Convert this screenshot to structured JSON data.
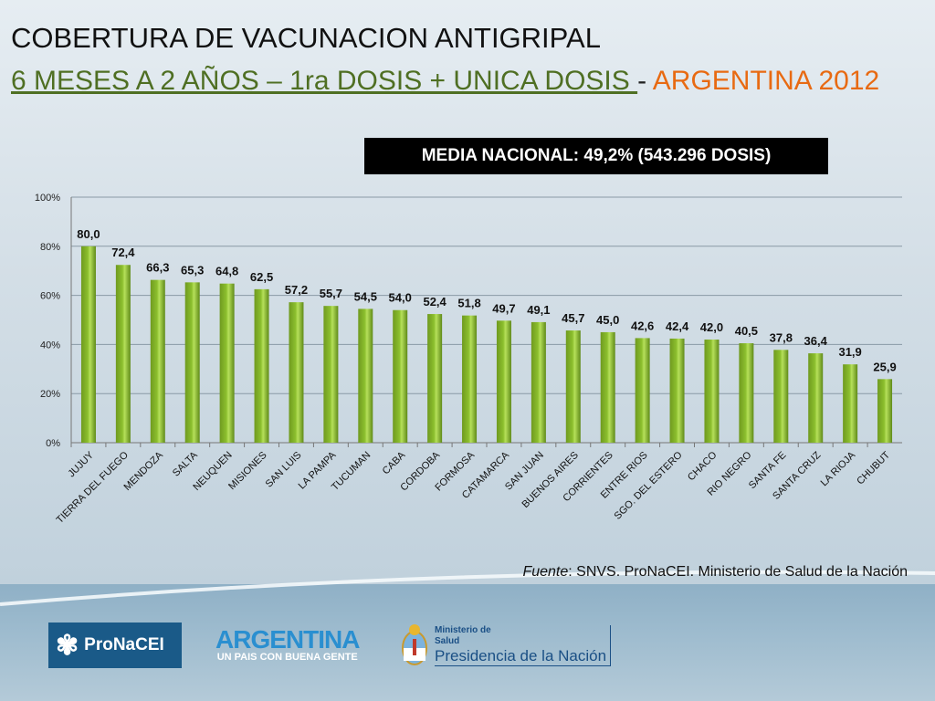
{
  "title": {
    "line1": "COBERTURA DE VACUNACION ANTIGRIPAL",
    "line2_underlined": "6 MESES A 2 AÑOS – 1ra DOSIS + UNICA DOSIS ",
    "line2_dash": "- ",
    "line2_orange": "ARGENTINA 2012"
  },
  "media_box": "MEDIA NACIONAL:  49,2% (543.296 DOSIS)",
  "source": {
    "label": "Fuente",
    "text": ": SNVS. ProNaCEI. Ministerio de Salud de la Nación"
  },
  "logos": {
    "pronacei": "ProNaCEI",
    "argentina": "ARGENTINA",
    "argentina_tagline": "UN PAIS CON BUENA GENTE",
    "ministerio": "Ministerio de",
    "salud": "Salud",
    "presidencia": "Presidencia de la Nación"
  },
  "colors": {
    "bar": "#8cbf2e",
    "title_green": "#4f6f23",
    "title_orange": "#e86a12"
  },
  "chart_data": {
    "type": "bar",
    "categories": [
      "JUJUY",
      "TIERRA DEL FUEGO",
      "MENDOZA",
      "SALTA",
      "NEUQUEN",
      "MISIONES",
      "SAN LUIS",
      "LA PAMPA",
      "TUCUMAN",
      "CABA",
      "CORDOBA",
      "FORMOSA",
      "CATAMARCA",
      "SAN JUAN",
      "BUENOS AIRES",
      "CORRIENTES",
      "ENTRE RIOS",
      "SGO. DEL ESTERO",
      "CHACO",
      "RIO NEGRO",
      "SANTA FE",
      "SANTA CRUZ",
      "LA RIOJA",
      "CHUBUT"
    ],
    "values": [
      80.0,
      72.4,
      66.3,
      65.3,
      64.8,
      62.5,
      57.2,
      55.7,
      54.5,
      54.0,
      52.4,
      51.8,
      49.7,
      49.1,
      45.7,
      45.0,
      42.6,
      42.4,
      42.0,
      40.5,
      37.8,
      36.4,
      31.9,
      25.9
    ],
    "data_labels": [
      "80,0",
      "72,4",
      "66,3",
      "65,3",
      "64,8",
      "62,5",
      "57,2",
      "55,7",
      "54,5",
      "54,0",
      "52,4",
      "51,8",
      "49,7",
      "49,1",
      "45,7",
      "45,0",
      "42,6",
      "42,4",
      "42,0",
      "40,5",
      "37,8",
      "36,4",
      "31,9",
      "25,9"
    ],
    "yticks": [
      "0%",
      "20%",
      "40%",
      "60%",
      "80%",
      "100%"
    ],
    "ylim": [
      0,
      100
    ],
    "grid": true
  }
}
